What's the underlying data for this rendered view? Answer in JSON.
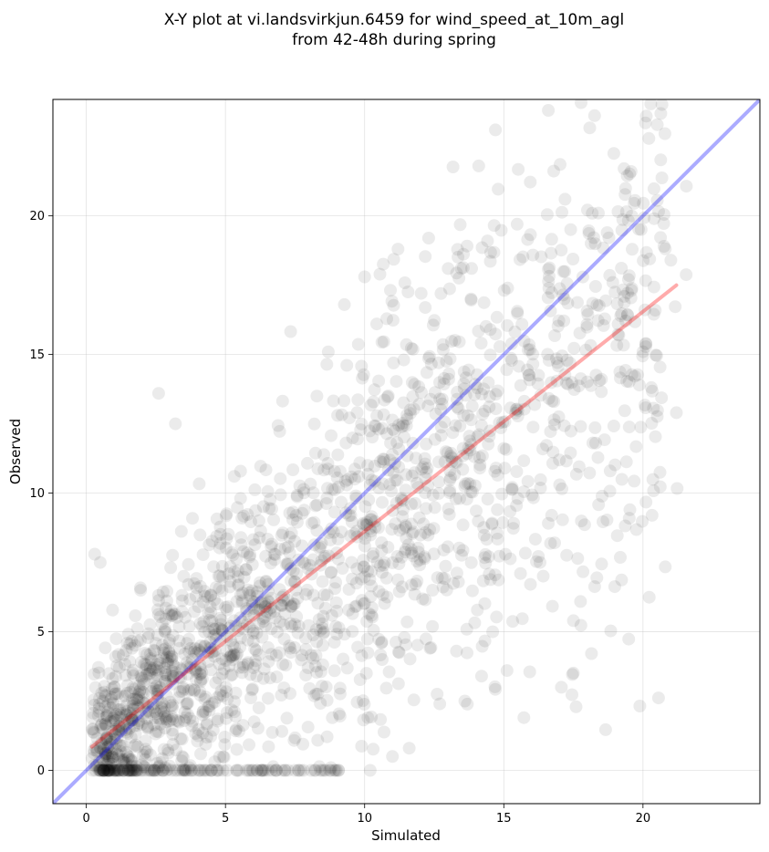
{
  "chart_data": {
    "type": "scatter",
    "title": [
      "X-Y plot at vi.landsvirkjun.6459 for wind_speed_at_10m_agl",
      "from 42-48h during spring"
    ],
    "xlabel": "Simulated",
    "ylabel": "Observed",
    "xlim": [
      -1.2,
      24.2
    ],
    "ylim": [
      -1.2,
      24.2
    ],
    "xticks": [
      0,
      5,
      10,
      15,
      20
    ],
    "yticks": [
      0,
      5,
      10,
      15,
      20
    ],
    "grid": true,
    "point_color": "#000000",
    "point_opacity": 0.08,
    "reference_line": {
      "name": "",
      "color": "#0000ff",
      "points": [
        [
          -1.2,
          -1.2
        ],
        [
          24.2,
          24.2
        ]
      ]
    },
    "fit_line": {
      "name": "",
      "color": "#ff0000",
      "points": [
        [
          0.2,
          0.85
        ],
        [
          21.2,
          17.5
        ]
      ]
    },
    "notable_points": [
      [
        14.7,
        23.1
      ],
      [
        14.1,
        21.8
      ],
      [
        17.2,
        20.6
      ],
      [
        19.6,
        20.0
      ],
      [
        20.4,
        19.9
      ],
      [
        21.2,
        12.9
      ],
      [
        17.5,
        5.4
      ],
      [
        2.6,
        13.6
      ],
      [
        0.3,
        7.8
      ],
      [
        0.5,
        7.5
      ],
      [
        10.2,
        0.0
      ],
      [
        13.6,
        2.5
      ],
      [
        15.6,
        7.1
      ],
      [
        16.3,
        7.5
      ],
      [
        3.2,
        12.5
      ],
      [
        11.2,
        18.8
      ],
      [
        12.3,
        19.2
      ],
      [
        10.0,
        17.8
      ],
      [
        13.0,
        18.1
      ],
      [
        18.4,
        20.1
      ],
      [
        21.0,
        18.4
      ],
      [
        20.1,
        15.4
      ],
      [
        19.2,
        16.4
      ],
      [
        20.0,
        15.1
      ],
      [
        14.6,
        5.0
      ],
      [
        14.2,
        3.4
      ],
      [
        13.3,
        4.3
      ],
      [
        12.7,
        2.4
      ],
      [
        11.6,
        0.8
      ],
      [
        11.0,
        0.5
      ]
    ],
    "cluster_count": 1900
  }
}
